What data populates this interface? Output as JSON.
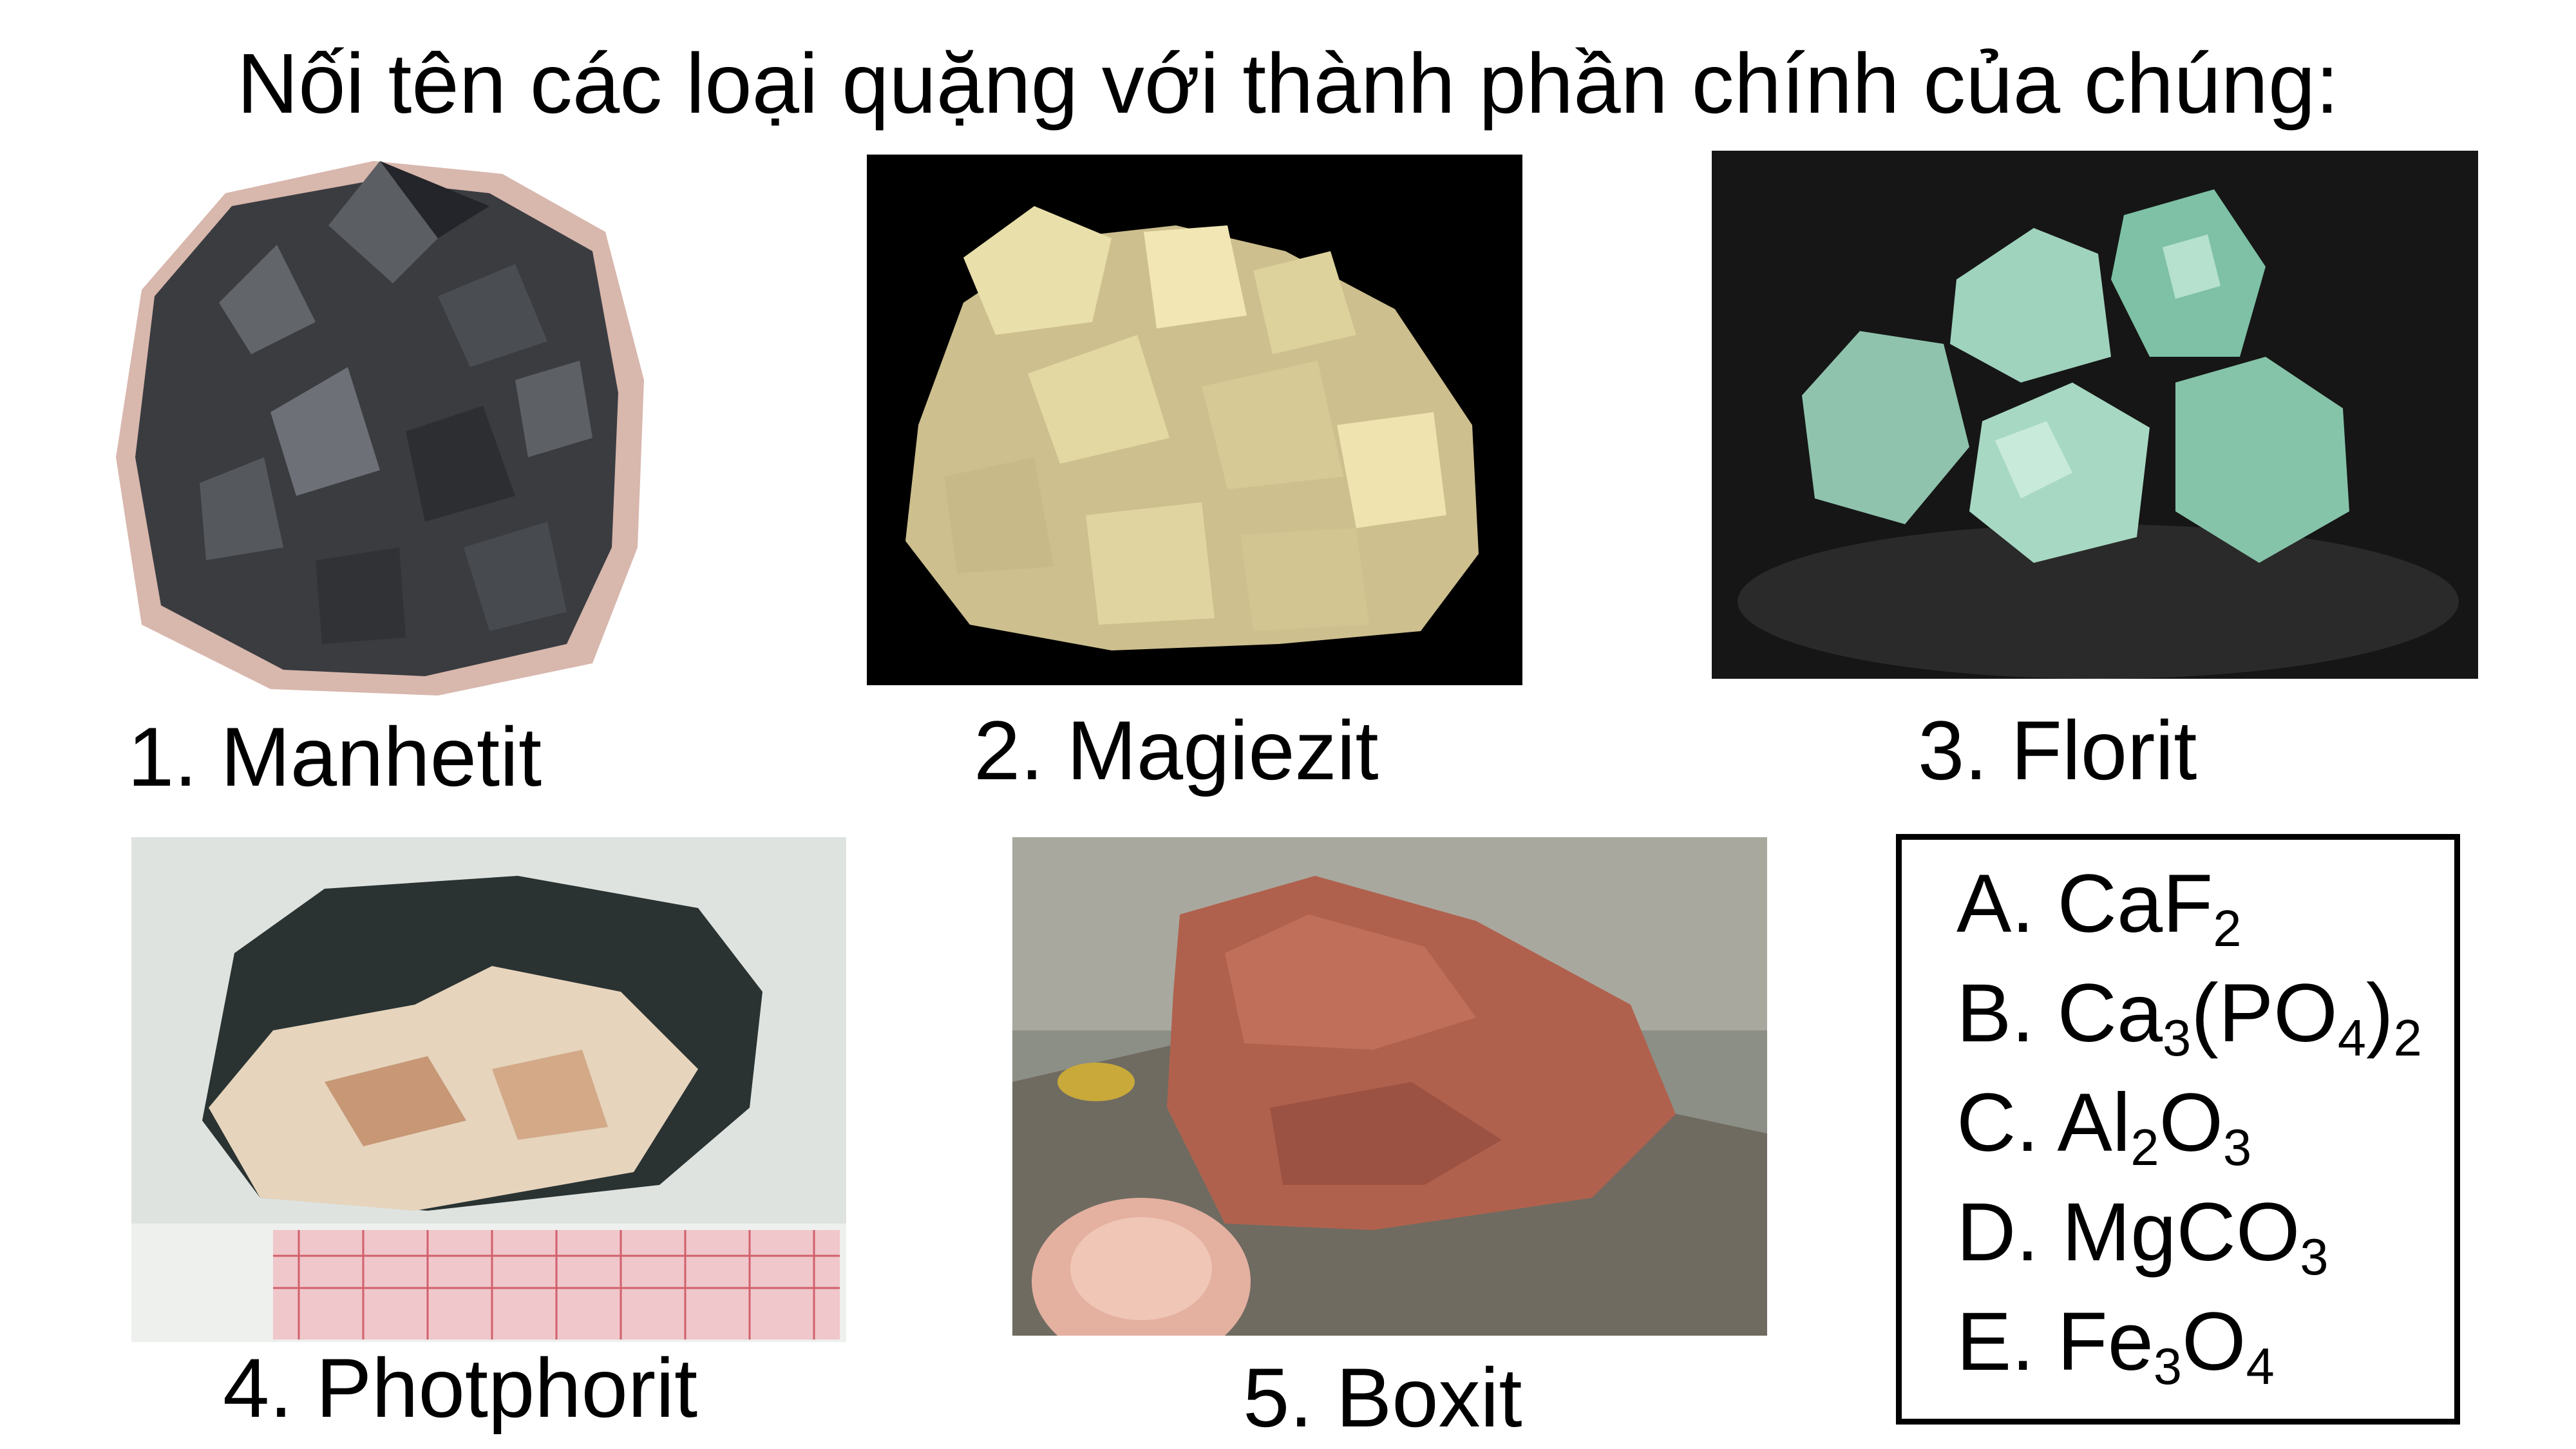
{
  "title": "Nối tên các loại quặng với thành phần chính của chúng:",
  "ores": [
    {
      "label": "1. Manhetit"
    },
    {
      "label": "2. Magiezit"
    },
    {
      "label": "3. Florit"
    },
    {
      "label": "4. Photphorit"
    },
    {
      "label": "5. Boxit"
    }
  ],
  "answers": [
    {
      "letter": "A.",
      "formula": [
        "Ca",
        "F",
        "2"
      ]
    },
    {
      "letter": "B.",
      "formula": [
        "Ca",
        "3",
        "(PO",
        "4",
        ")",
        "2"
      ]
    },
    {
      "letter": "C.",
      "formula": [
        "Al",
        "2",
        "O",
        "3"
      ]
    },
    {
      "letter": "D.",
      "formula": [
        "MgCO",
        "3"
      ]
    },
    {
      "letter": "E.",
      "formula": [
        "Fe",
        "3",
        "O",
        "4"
      ]
    }
  ]
}
